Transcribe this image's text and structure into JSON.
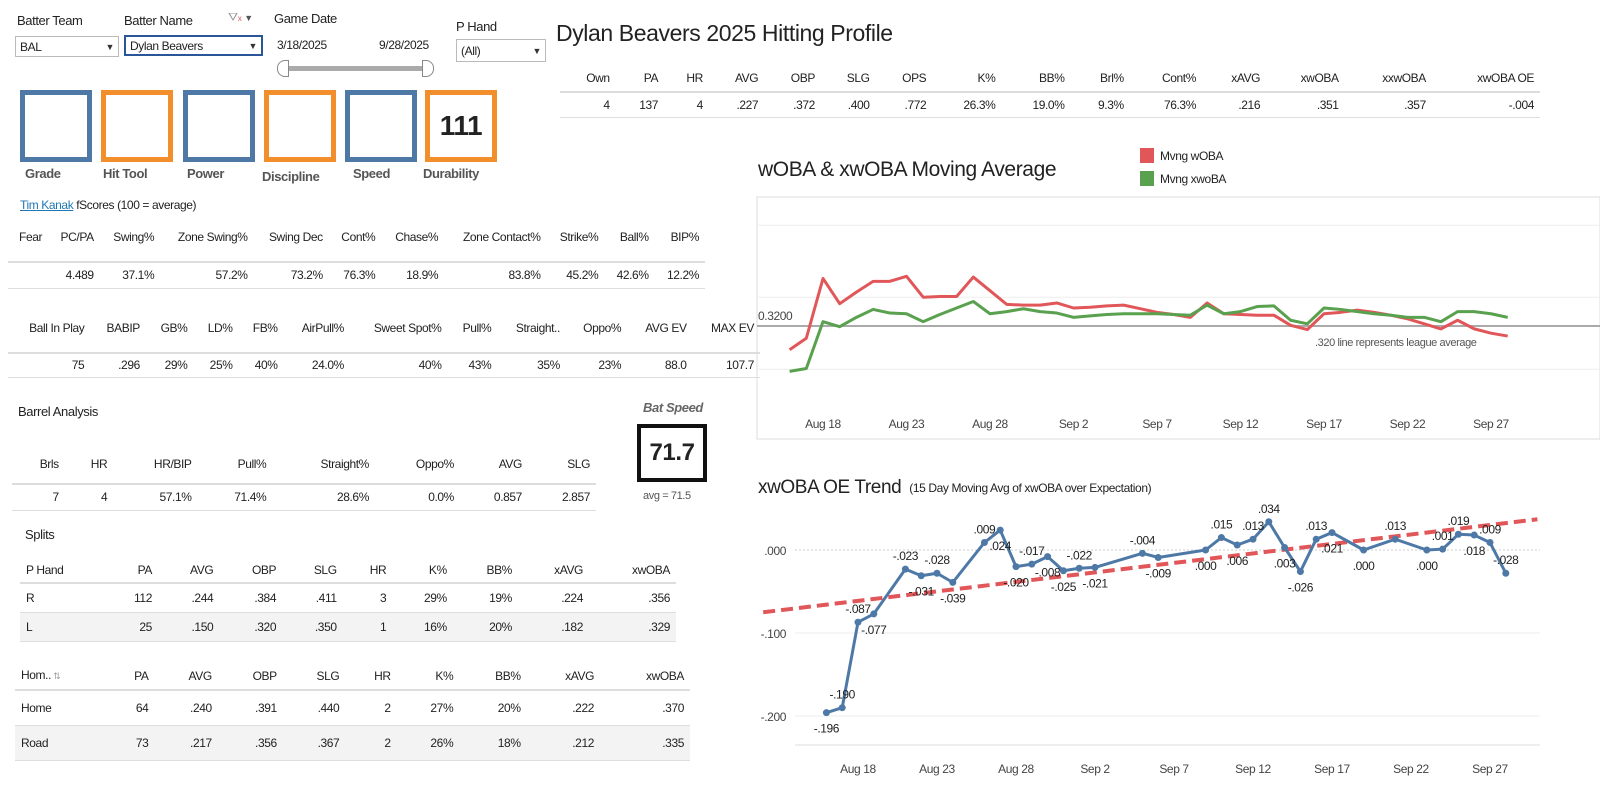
{
  "filters": {
    "batter_team_label": "Batter Team",
    "batter_team_value": "BAL",
    "batter_name_label": "Batter Name",
    "batter_name_value": "Dylan Beavers",
    "game_date_label": "Game Date",
    "date_start": "3/18/2025",
    "date_end": "9/28/2025",
    "p_hand_label": "P Hand",
    "p_hand_value": "(All)"
  },
  "scores": [
    {
      "label": "Grade",
      "value": "",
      "color": "#4e79a7"
    },
    {
      "label": "Hit Tool",
      "value": "",
      "color": "#f28e2b"
    },
    {
      "label": "Power",
      "value": "",
      "color": "#4e79a7"
    },
    {
      "label": "Discipline",
      "value": "",
      "color": "#f28e2b"
    },
    {
      "label": "Speed",
      "value": "",
      "color": "#4e79a7"
    },
    {
      "label": "Durability",
      "value": "111",
      "color": "#f28e2b"
    }
  ],
  "title": "Dylan Beavers 2025 Hitting Profile",
  "summary": {
    "headers": [
      "Own",
      "PA",
      "HR",
      "AVG",
      "OBP",
      "SLG",
      "OPS",
      "K%",
      "BB%",
      "Brl%",
      "Cont%",
      "xAVG",
      "xwOBA",
      "xxwOBA",
      "xwOBA OE"
    ],
    "rows": [
      [
        "4",
        "137",
        "4",
        ".227",
        ".372",
        ".400",
        ".772",
        "26.3%",
        "19.0%",
        "9.3%",
        "76.3%",
        ".216",
        ".351",
        ".357",
        "-.004"
      ]
    ]
  },
  "fscores": {
    "link": "Tim Kanak",
    "caption": "fScores (100 = average)",
    "headers": [
      "Fear",
      "PC/PA",
      "Swing%",
      "Zone Swing%",
      "Swing Dec",
      "Cont%",
      "Chase%",
      "Zone Contact%",
      "Strike%",
      "Ball%",
      "BIP%"
    ],
    "rows": [
      [
        "",
        "4.489",
        "37.1%",
        "57.2%",
        "73.2%",
        "76.3%",
        "18.9%",
        "83.8%",
        "45.2%",
        "42.6%",
        "12.2%"
      ]
    ]
  },
  "batted_ball": {
    "headers": [
      "Ball In Play",
      "BABIP",
      "GB%",
      "LD%",
      "FB%",
      "AirPull%",
      "Sweet Spot%",
      "Pull%",
      "Straight..",
      "Oppo%",
      "AVG EV",
      "MAX EV"
    ],
    "rows": [
      [
        "75",
        ".296",
        "29%",
        "25%",
        "40%",
        "24.0%",
        "40%",
        "43%",
        "35%",
        "23%",
        "88.0",
        "107.7"
      ]
    ]
  },
  "barrel": {
    "title": "Barrel Analysis",
    "headers": [
      "Brls",
      "HR",
      "HR/BIP",
      "Pull%",
      "Straight%",
      "Oppo%",
      "AVG",
      "SLG"
    ],
    "rows": [
      [
        "7",
        "4",
        "57.1%",
        "71.4%",
        "28.6%",
        "0.0%",
        "0.857",
        "2.857"
      ]
    ]
  },
  "bat_speed": {
    "label": "Bat Speed",
    "value": "71.7",
    "avg": "avg = 71.5"
  },
  "splits": {
    "title": "Splits",
    "hand": {
      "headers": [
        "P Hand",
        "PA",
        "AVG",
        "OBP",
        "SLG",
        "HR",
        "K%",
        "BB%",
        "xAVG",
        "xwOBA"
      ],
      "rows": [
        [
          "R",
          "112",
          ".244",
          ".384",
          ".411",
          "3",
          "29%",
          "19%",
          ".224",
          ".356"
        ],
        [
          "L",
          "25",
          ".150",
          ".320",
          ".350",
          "1",
          "16%",
          "20%",
          ".182",
          ".329"
        ]
      ]
    },
    "home": {
      "headers": [
        "Hom..",
        "PA",
        "AVG",
        "OBP",
        "SLG",
        "HR",
        "K%",
        "BB%",
        "xAVG",
        "xwOBA"
      ],
      "rows": [
        [
          "Home",
          "64",
          ".240",
          ".391",
          ".440",
          "2",
          "27%",
          "20%",
          ".222",
          ".370"
        ],
        [
          "Road",
          "73",
          ".217",
          ".356",
          ".367",
          "2",
          "26%",
          "18%",
          ".212",
          ".335"
        ]
      ]
    }
  },
  "chart_data": [
    {
      "type": "line",
      "title": "wOBA & xwOBA Moving Average",
      "x_ticks": [
        "Aug 18",
        "Aug 23",
        "Aug 28",
        "Sep 2",
        "Sep 7",
        "Sep 12",
        "Sep 17",
        "Sep 22",
        "Sep 27"
      ],
      "x_start": "2025-08-16",
      "reference": {
        "value": 0.32,
        "label": "0.3200",
        "note": ".320 line represents league average"
      },
      "ylim": [
        0.21,
        0.5
      ],
      "grid": [
        0.26,
        0.36,
        0.46
      ],
      "series": [
        {
          "name": "Mvng wOBA",
          "color": "#e15759",
          "values": [
            0.287,
            0.303,
            0.386,
            0.351,
            0.367,
            0.382,
            0.382,
            0.389,
            0.36,
            0.361,
            0.361,
            0.388,
            0.369,
            0.35,
            0.349,
            0.349,
            0.352,
            0.345,
            0.346,
            0.348,
            0.349,
            0.344,
            0.339,
            0.336,
            0.332,
            0.352,
            0.337,
            0.336,
            0.335,
            0.335,
            0.321,
            0.315,
            0.337,
            0.339,
            0.342,
            0.339,
            0.335,
            0.33,
            0.323,
            0.316,
            0.328,
            0.316,
            0.31,
            0.306
          ]
        },
        {
          "name": "Mvng xwoBA",
          "color": "#59a14f",
          "values": [
            0.257,
            0.261,
            0.326,
            0.319,
            0.332,
            0.343,
            0.338,
            0.337,
            0.326,
            0.336,
            0.345,
            0.354,
            0.337,
            0.34,
            0.344,
            0.34,
            0.338,
            0.332,
            0.334,
            0.336,
            0.337,
            0.337,
            0.337,
            0.336,
            0.335,
            0.349,
            0.337,
            0.34,
            0.347,
            0.348,
            0.328,
            0.323,
            0.345,
            0.343,
            0.34,
            0.337,
            0.335,
            0.332,
            0.332,
            0.326,
            0.34,
            0.34,
            0.337,
            0.332
          ]
        }
      ]
    },
    {
      "type": "line",
      "title": "xwOBA OE Trend",
      "subtitle": "(15 Day Moving Avg of xwOBA over Expectation)",
      "x_ticks": [
        "Aug 18",
        "Aug 23",
        "Aug 28",
        "Sep 2",
        "Sep 7",
        "Sep 12",
        "Sep 17",
        "Sep 22",
        "Sep 27"
      ],
      "y_ticks": [
        ".000",
        "-.100",
        "-.200"
      ],
      "ylim": [
        -0.21,
        0.05
      ],
      "color": "#4e79a7",
      "points": [
        [
          "2025-08-16",
          -0.196,
          "-.196"
        ],
        [
          "2025-08-17",
          -0.19,
          "-.190"
        ],
        [
          "2025-08-18",
          -0.087,
          "-.087"
        ],
        [
          "2025-08-19",
          -0.077,
          "-.077"
        ],
        [
          "2025-08-21",
          -0.023,
          "-.023"
        ],
        [
          "2025-08-22",
          -0.031,
          "-.031"
        ],
        [
          "2025-08-23",
          -0.028,
          "-.028"
        ],
        [
          "2025-08-24",
          -0.039,
          "-.039"
        ],
        [
          "2025-08-26",
          0.009,
          ".009"
        ],
        [
          "2025-08-27",
          0.024,
          ".024"
        ],
        [
          "2025-08-28",
          -0.02,
          "-.020"
        ],
        [
          "2025-08-29",
          -0.017,
          "-.017"
        ],
        [
          "2025-08-30",
          -0.008,
          "-.008"
        ],
        [
          "2025-08-31",
          -0.025,
          "-.025"
        ],
        [
          "2025-09-01",
          -0.022,
          "-.022"
        ],
        [
          "2025-09-02",
          -0.021,
          "-.021"
        ],
        [
          "2025-09-05",
          -0.004,
          "-.004"
        ],
        [
          "2025-09-06",
          -0.009,
          "-.009"
        ],
        [
          "2025-09-09",
          0.0,
          ".000"
        ],
        [
          "2025-09-10",
          0.015,
          ".015"
        ],
        [
          "2025-09-11",
          0.006,
          ".006"
        ],
        [
          "2025-09-12",
          0.013,
          ".013"
        ],
        [
          "2025-09-13",
          0.034,
          ".034"
        ],
        [
          "2025-09-14",
          0.003,
          ".003"
        ],
        [
          "2025-09-15",
          -0.026,
          "-.026"
        ],
        [
          "2025-09-16",
          0.013,
          ".013"
        ],
        [
          "2025-09-17",
          0.021,
          ".021"
        ],
        [
          "2025-09-19",
          0.0,
          ".000"
        ],
        [
          "2025-09-21",
          0.013,
          ".013"
        ],
        [
          "2025-09-23",
          0.0,
          ".000"
        ],
        [
          "2025-09-24",
          0.001,
          ".001"
        ],
        [
          "2025-09-25",
          0.019,
          ".019"
        ],
        [
          "2025-09-26",
          0.018,
          ".018"
        ],
        [
          "2025-09-27",
          0.009,
          ".009"
        ],
        [
          "2025-09-28",
          -0.028,
          "-.028"
        ]
      ],
      "trend": {
        "color": "#e15759",
        "start": [
          "2025-08-12",
          -0.075
        ],
        "end": [
          "2025-09-30",
          0.037
        ]
      }
    }
  ]
}
